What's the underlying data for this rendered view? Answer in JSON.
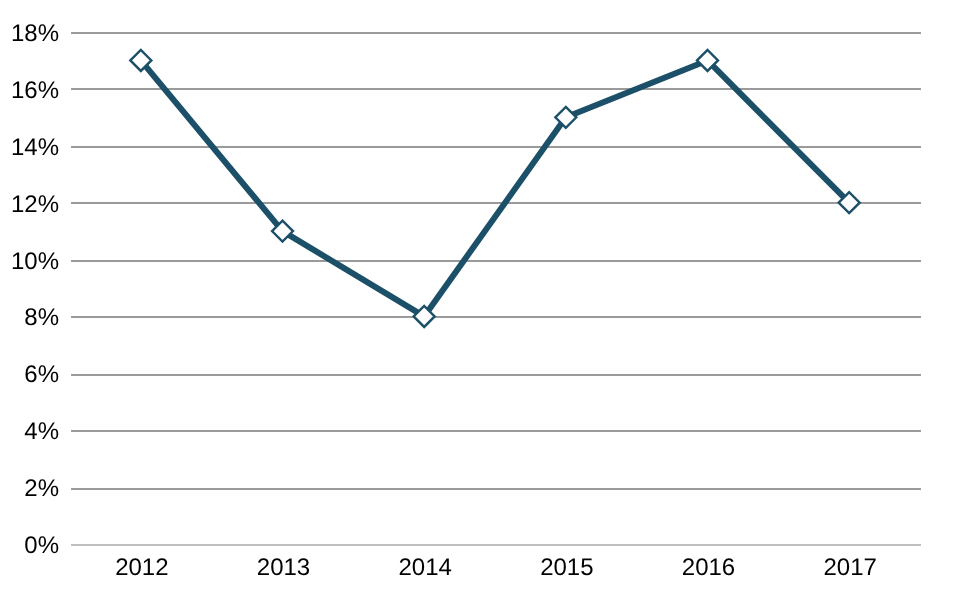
{
  "chart_data": {
    "type": "line",
    "categories": [
      "2012",
      "2013",
      "2014",
      "2015",
      "2016",
      "2017"
    ],
    "series": [
      {
        "color": "#1b5068",
        "values": [
          17,
          11,
          8,
          15,
          17,
          12
        ]
      }
    ],
    "ylim": [
      0,
      18
    ],
    "yticks": [
      {
        "value": 0,
        "label": "0%"
      },
      {
        "value": 2,
        "label": "2%"
      },
      {
        "value": 4,
        "label": "4%"
      },
      {
        "value": 6,
        "label": "6%"
      },
      {
        "value": 8,
        "label": "8%"
      },
      {
        "value": 10,
        "label": "10%"
      },
      {
        "value": 12,
        "label": "12%"
      },
      {
        "value": 14,
        "label": "14%"
      },
      {
        "value": 16,
        "label": "16%"
      },
      {
        "value": 18,
        "label": "18%"
      }
    ],
    "grid": "y",
    "marker": "diamond",
    "line_style": "solid",
    "legend": false
  }
}
